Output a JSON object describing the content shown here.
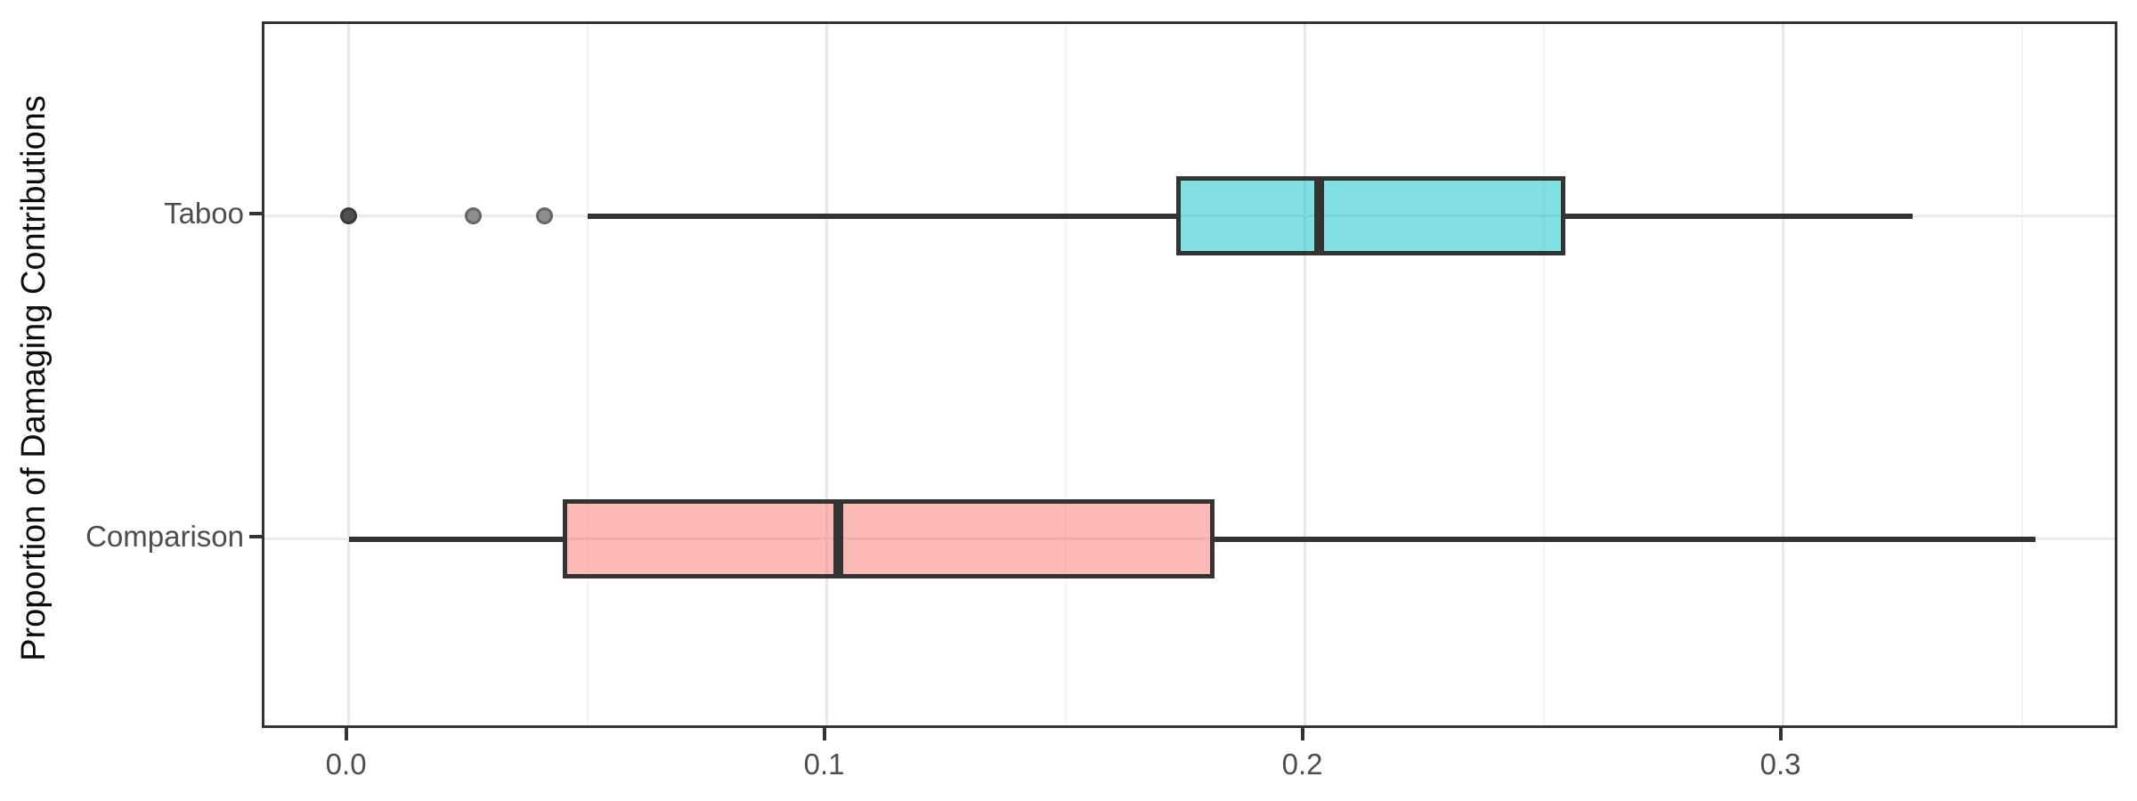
{
  "chart_data": {
    "type": "boxplot",
    "orientation": "horizontal",
    "title": "",
    "xlabel": "",
    "ylabel": "Proportion of Damaging Contributions",
    "xlim": [
      -0.01762,
      0.37047
    ],
    "x_ticks": [
      0.0,
      0.1,
      0.2,
      0.3
    ],
    "x_tick_labels": [
      "0.0",
      "0.1",
      "0.2",
      "0.3"
    ],
    "x_minor_gridlines": [
      0.05,
      0.15,
      0.25,
      0.35
    ],
    "grid": "major-and-minor",
    "legend_position": "none",
    "categories_top_to_bottom": [
      "Taboo",
      "Comparison"
    ],
    "series": [
      {
        "name": "Taboo",
        "fill": "rgba(0,191,196,0.5)",
        "fill_flat": "#80dfe1",
        "stroke": "#333333",
        "whisker_min": 0.05,
        "q1": 0.173,
        "median": 0.203,
        "q3": 0.2545,
        "whisker_max": 0.327,
        "outliers": [
          {
            "value": 0.0,
            "fill": "#4f4f4f",
            "stroke": "#3a3a3a"
          },
          {
            "value": 0.026,
            "fill": "#8d8d8d",
            "stroke": "#666666"
          },
          {
            "value": 0.041,
            "fill": "#8d8d8d",
            "stroke": "#666666"
          }
        ]
      },
      {
        "name": "Comparison",
        "fill": "rgba(248,118,109,0.5)",
        "fill_flat": "#fbbab6",
        "stroke": "#333333",
        "whisker_min": 0.0,
        "q1": 0.0448,
        "median": 0.1024,
        "q3": 0.181,
        "whisker_max": 0.3527,
        "outliers": []
      }
    ],
    "colors": {
      "panel_border": "#333333",
      "major_gridline": "#e9e9e9",
      "minor_gridline": "#f4f4f4",
      "category_gridline": "#ebebeb",
      "tick_mark": "#333333",
      "tick_label": "#4d4d4d",
      "axis_title": "#0d0d0d",
      "taboo_fill_hex": "#80dfe1",
      "comparison_fill_hex": "#fbbab6"
    }
  }
}
